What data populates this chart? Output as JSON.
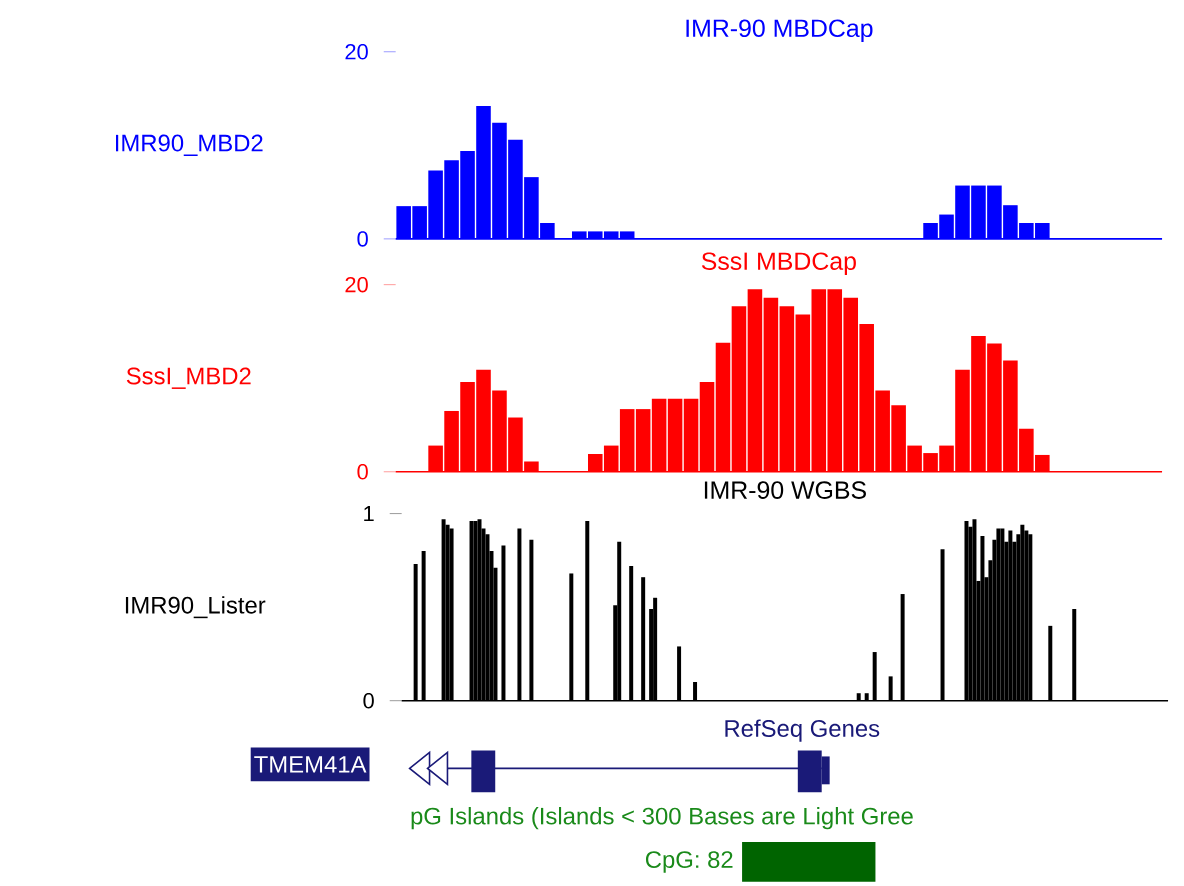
{
  "chart_data": [
    {
      "type": "bar",
      "title": "IMR-90 MBDCap",
      "ylabel": "IMR90_MBD2",
      "color": "#0000ff",
      "categories": [
        null,
        null,
        null,
        null,
        null,
        null,
        null,
        null,
        null,
        null,
        null,
        null,
        null,
        null,
        null,
        null,
        null,
        null,
        null,
        null,
        null,
        null,
        null,
        null,
        null,
        null,
        null,
        null,
        null,
        null,
        null,
        null,
        null,
        null,
        null,
        null,
        null,
        null,
        null,
        null,
        null,
        null,
        null,
        null,
        null,
        null,
        null,
        null
      ],
      "values": [
        3.5,
        3.5,
        7.3,
        8.4,
        9.4,
        14.2,
        12.4,
        10.6,
        6.6,
        1.7,
        0,
        0.8,
        0.8,
        0.8,
        0.8,
        0,
        0,
        0,
        0,
        0,
        0,
        0,
        0,
        0,
        0,
        0,
        0,
        0,
        0,
        0,
        0,
        0,
        0,
        1.7,
        2.6,
        5.7,
        5.7,
        5.7,
        3.6,
        1.7,
        1.7,
        0,
        0,
        0,
        0,
        0,
        0,
        0
      ],
      "ylim": [
        0,
        20
      ],
      "yticks": [
        0,
        20
      ],
      "tick_labels": "y"
    },
    {
      "type": "bar",
      "title": "SssI MBDCap",
      "ylabel": "SssI_MBD2",
      "color": "#ff0000",
      "categories": [
        null,
        null,
        null,
        null,
        null,
        null,
        null,
        null,
        null,
        null,
        null,
        null,
        null,
        null,
        null,
        null,
        null,
        null,
        null,
        null,
        null,
        null,
        null,
        null,
        null,
        null,
        null,
        null,
        null,
        null,
        null,
        null,
        null,
        null,
        null,
        null,
        null,
        null,
        null,
        null,
        null,
        null,
        null,
        null,
        null,
        null,
        null,
        null
      ],
      "values": [
        0,
        0,
        2.8,
        6.5,
        9.6,
        10.9,
        8.7,
        5.8,
        1.1,
        0,
        0,
        0,
        1.9,
        2.8,
        6.7,
        6.7,
        7.8,
        7.8,
        7.8,
        9.6,
        13.8,
        17.7,
        19.5,
        18.6,
        17.7,
        16.8,
        19.5,
        19.5,
        18.6,
        15.8,
        8.7,
        7.1,
        2.8,
        2.0,
        2.8,
        10.9,
        14.5,
        13.7,
        11.9,
        4.6,
        1.8,
        0,
        0,
        0,
        0,
        0,
        0,
        0
      ],
      "ylim": [
        0,
        20
      ],
      "yticks": [
        0,
        20
      ],
      "tick_labels": "y"
    },
    {
      "type": "bar",
      "title": "IMR-90 WGBS",
      "ylabel": "IMR90_Lister",
      "color": "#000000",
      "categories": [
        null,
        null,
        null,
        null,
        null,
        null,
        null,
        null,
        null,
        null,
        null,
        null,
        null,
        null,
        null,
        null,
        null,
        null,
        null,
        null,
        null,
        null,
        null,
        null,
        null,
        null,
        null,
        null,
        null,
        null,
        null,
        null,
        null,
        null,
        null,
        null,
        null,
        null,
        null,
        null,
        null,
        null,
        null,
        null,
        null,
        null,
        null,
        null,
        null,
        null,
        null,
        null,
        null,
        null,
        null,
        null,
        null,
        null,
        null,
        null,
        null,
        null,
        null,
        null,
        null,
        null,
        null,
        null,
        null,
        null,
        null,
        null,
        null,
        null,
        null,
        null,
        null,
        null,
        null,
        null,
        null,
        null,
        null,
        null,
        null,
        null,
        null,
        null,
        null,
        null,
        null,
        null,
        null,
        null,
        null,
        null,
        null,
        null,
        null,
        null,
        null,
        null,
        null,
        null,
        null,
        null,
        null,
        null,
        null,
        null,
        null,
        null,
        null,
        null,
        null,
        null,
        null,
        null,
        null,
        null,
        null,
        null,
        null,
        null,
        null,
        null,
        null,
        null,
        null,
        null,
        null,
        null,
        null,
        null,
        null,
        null,
        null,
        null,
        null,
        null,
        null,
        null,
        null,
        null,
        null,
        null,
        null,
        null,
        null,
        null,
        null,
        null,
        null,
        null,
        null,
        null,
        null,
        null,
        null,
        null,
        null,
        null,
        null,
        null,
        null,
        null,
        null,
        null,
        null,
        null,
        null,
        null,
        null,
        null,
        null,
        null,
        null,
        null,
        null,
        null,
        null,
        null,
        null,
        null,
        null,
        null,
        null,
        null,
        null,
        null,
        null,
        null
      ],
      "values": [
        0,
        0,
        0,
        0.73,
        0,
        0.8,
        0,
        0,
        0,
        0,
        0.97,
        0.94,
        0.92,
        0,
        0,
        0,
        0,
        0.96,
        0.96,
        0.97,
        0.92,
        0.89,
        0.8,
        0.71,
        0,
        0.83,
        0,
        0,
        0,
        0.92,
        0,
        0,
        0.86,
        0,
        0,
        0,
        0,
        0,
        0,
        0,
        0,
        0,
        0.68,
        0,
        0,
        0,
        0.96,
        0,
        0,
        0,
        0,
        0,
        0,
        0.51,
        0.85,
        0,
        0,
        0.72,
        0,
        0,
        0.66,
        0,
        0.49,
        0.55,
        0,
        0,
        0,
        0,
        0,
        0.29,
        0,
        0,
        0,
        0.1,
        0,
        0,
        0,
        0,
        0,
        0,
        0,
        0,
        0,
        0,
        0,
        0,
        0,
        0,
        0,
        0,
        0,
        0,
        0,
        0,
        0,
        0,
        0,
        0,
        0,
        0,
        0,
        0,
        0,
        0,
        0,
        0,
        0,
        0,
        0,
        0,
        0,
        0,
        0,
        0,
        0.04,
        0,
        0.04,
        0,
        0.26,
        0,
        0,
        0,
        0.13,
        0,
        0,
        0.57,
        0,
        0,
        0,
        0,
        0,
        0,
        0,
        0,
        0,
        0.81,
        0,
        0,
        0,
        0,
        0,
        0.96,
        0.93,
        0.97,
        0.64,
        0.88,
        0.66,
        0.75,
        0.86,
        0.92,
        0.92,
        0.85,
        0.91,
        0.85,
        0.89,
        0.94,
        0.91,
        0.89,
        0,
        0,
        0,
        0,
        0.4,
        0,
        0,
        0,
        0,
        0,
        0.49,
        0,
        0,
        0,
        0,
        0,
        0,
        0,
        0,
        0,
        0,
        0,
        0,
        0,
        0,
        0,
        0,
        0,
        0,
        0,
        0,
        0,
        0,
        0
      ],
      "ylim": [
        0,
        1
      ],
      "yticks": [
        0,
        1
      ],
      "tick_labels": "y",
      "annotations": [
        "RefSeq Genes",
        "TMEM41A",
        "pG Islands (Islands < 300 Bases are Light Gree",
        "CpG: 82"
      ]
    }
  ]
}
